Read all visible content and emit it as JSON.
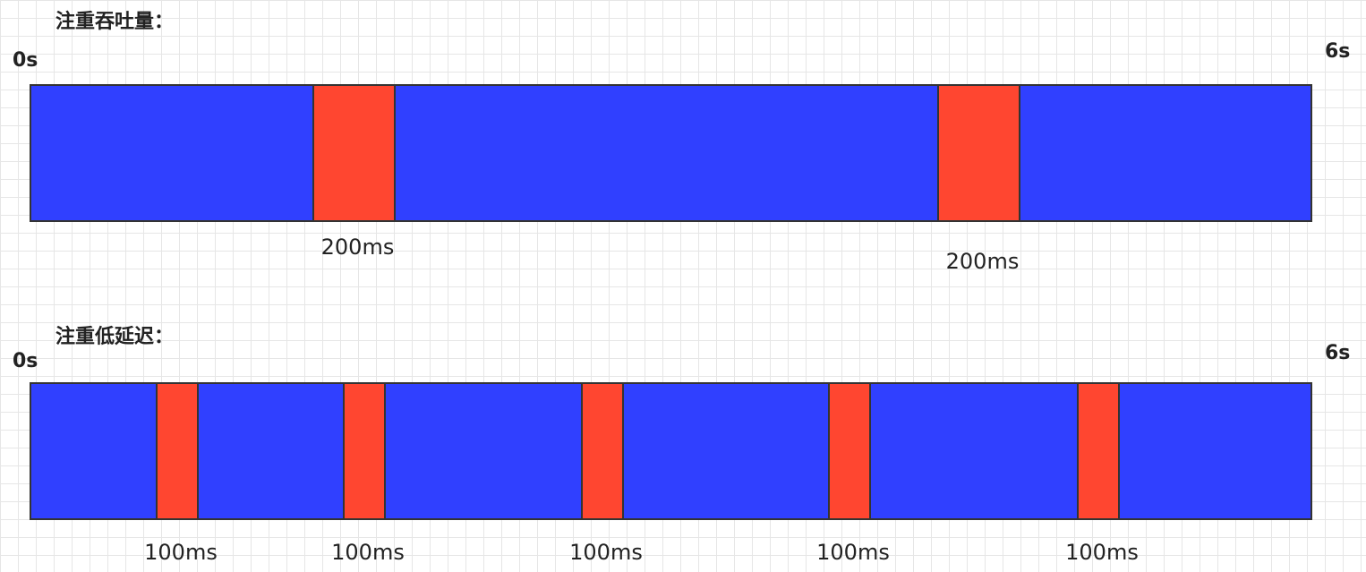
{
  "panels": [
    {
      "title": "注重吞吐量：",
      "start": "0s",
      "end": "6s",
      "pauses": [
        "200ms",
        "200ms"
      ]
    },
    {
      "title": "注重低延迟：",
      "start": "0s",
      "end": "6s",
      "pauses": [
        "100ms",
        "100ms",
        "100ms",
        "100ms",
        "100ms"
      ]
    }
  ]
}
